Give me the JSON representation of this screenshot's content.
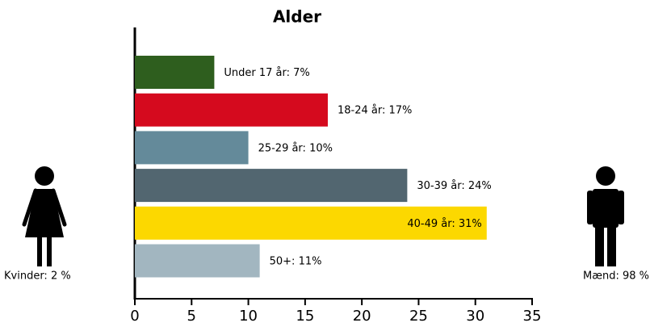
{
  "chart_data": {
    "type": "bar",
    "orientation": "horizontal",
    "title": "Alder",
    "values": [
      7,
      17,
      10,
      24,
      31,
      11
    ],
    "value_labels": [
      "Under 17 år: 7%",
      "18-24 år: 17%",
      "25-29 år: 10%",
      "30-39 år: 24%",
      "40-49 år: 31%",
      "50+: 11%"
    ],
    "colors": [
      "#2e5e1e",
      "#d50a1e",
      "#648a9a",
      "#526670",
      "#fcd800",
      "#a2b6c0"
    ],
    "xlim": [
      0,
      35
    ],
    "xticks": [
      0,
      5,
      10,
      15,
      20,
      25,
      30,
      35
    ]
  },
  "women": {
    "label": "Kvinder: 2 %"
  },
  "men": {
    "label": "Mænd: 98 %"
  }
}
